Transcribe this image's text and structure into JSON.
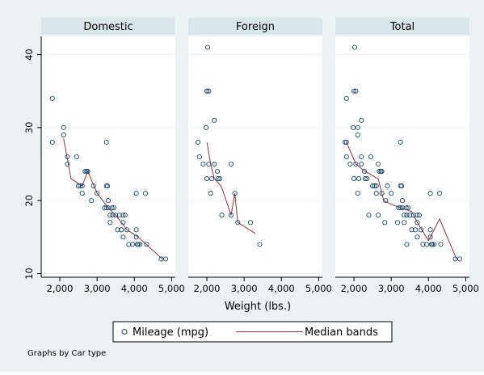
{
  "chart_data": {
    "type": "scatter",
    "xlabel": "Weight (lbs.)",
    "ylabel": "",
    "xlim": [
      1500,
      5100
    ],
    "ylim": [
      9.5,
      42.5
    ],
    "x_ticks": [
      2000,
      3000,
      4000,
      5000
    ],
    "x_tick_labels": [
      "2,000",
      "3,000",
      "4,000",
      "5,000"
    ],
    "y_ticks": [
      10,
      20,
      30,
      40
    ],
    "y_tick_labels": [
      "10",
      "20",
      "30",
      "40"
    ],
    "grid": true,
    "legend_position": "bottom",
    "legend": [
      {
        "label": "Mileage (mpg)",
        "kind": "marker"
      },
      {
        "label": "Median bands",
        "kind": "line"
      }
    ],
    "note": "Graphs by Car type",
    "colors": {
      "background": "#eaf2f3",
      "plot_region": "#ffffff",
      "grid": "#eaf2f3",
      "marker": "#1a476f",
      "median_line": "#90353b",
      "strip": "#d9e6eb"
    },
    "panels": [
      {
        "title": "Domestic",
        "points": [
          [
            1800,
            34
          ],
          [
            1800,
            28
          ],
          [
            2100,
            30
          ],
          [
            2100,
            29
          ],
          [
            2200,
            25
          ],
          [
            2200,
            26
          ],
          [
            2450,
            26
          ],
          [
            2500,
            22
          ],
          [
            2550,
            22
          ],
          [
            2600,
            22
          ],
          [
            2600,
            21
          ],
          [
            2680,
            24
          ],
          [
            2720,
            24
          ],
          [
            2750,
            24
          ],
          [
            2850,
            20
          ],
          [
            2900,
            22
          ],
          [
            3000,
            21
          ],
          [
            3200,
            19
          ],
          [
            3250,
            22
          ],
          [
            3250,
            19
          ],
          [
            3250,
            28
          ],
          [
            3280,
            22
          ],
          [
            3300,
            20
          ],
          [
            3300,
            19
          ],
          [
            3350,
            17
          ],
          [
            3350,
            18
          ],
          [
            3400,
            19
          ],
          [
            3420,
            18
          ],
          [
            3450,
            19
          ],
          [
            3500,
            18
          ],
          [
            3550,
            16
          ],
          [
            3600,
            18
          ],
          [
            3650,
            16
          ],
          [
            3650,
            16
          ],
          [
            3700,
            15
          ],
          [
            3700,
            17
          ],
          [
            3700,
            18
          ],
          [
            3750,
            18
          ],
          [
            3800,
            16
          ],
          [
            3850,
            14
          ],
          [
            3950,
            14
          ],
          [
            4050,
            16
          ],
          [
            4050,
            15
          ],
          [
            4050,
            21
          ],
          [
            4080,
            14
          ],
          [
            4100,
            14
          ],
          [
            4150,
            14
          ],
          [
            4300,
            21
          ],
          [
            4330,
            14
          ],
          [
            4720,
            12
          ],
          [
            4840,
            12
          ]
        ],
        "median_line": [
          [
            2100,
            28.5
          ],
          [
            2300,
            23
          ],
          [
            2600,
            22
          ],
          [
            2750,
            24
          ],
          [
            3000,
            21
          ],
          [
            3300,
            19
          ],
          [
            3500,
            18
          ],
          [
            3800,
            16
          ],
          [
            4100,
            15
          ],
          [
            4750,
            12
          ]
        ]
      },
      {
        "title": "Foreign",
        "points": [
          [
            1760,
            28
          ],
          [
            1800,
            26
          ],
          [
            1900,
            25
          ],
          [
            2000,
            35
          ],
          [
            2020,
            41
          ],
          [
            2050,
            35
          ],
          [
            1980,
            30
          ],
          [
            2000,
            23
          ],
          [
            2100,
            21
          ],
          [
            2050,
            25
          ],
          [
            2130,
            23
          ],
          [
            2200,
            31
          ],
          [
            2200,
            25
          ],
          [
            2280,
            24
          ],
          [
            2300,
            23
          ],
          [
            2350,
            23
          ],
          [
            2400,
            18
          ],
          [
            2650,
            25
          ],
          [
            2650,
            18
          ],
          [
            2750,
            21
          ],
          [
            2830,
            17
          ],
          [
            3170,
            17
          ],
          [
            3420,
            14
          ],
          [
            2000,
            35
          ]
        ],
        "median_line": [
          [
            2000,
            28
          ],
          [
            2100,
            25
          ],
          [
            2200,
            23
          ],
          [
            2380,
            22
          ],
          [
            2520,
            20
          ],
          [
            2650,
            18
          ],
          [
            2750,
            21
          ],
          [
            2830,
            17
          ],
          [
            3300,
            15.5
          ]
        ]
      },
      {
        "title": "Total",
        "points": [
          [
            1760,
            28
          ],
          [
            1800,
            26
          ],
          [
            1800,
            34
          ],
          [
            1800,
            28
          ],
          [
            1900,
            25
          ],
          [
            1980,
            30
          ],
          [
            2000,
            35
          ],
          [
            2000,
            23
          ],
          [
            2020,
            41
          ],
          [
            2050,
            35
          ],
          [
            2050,
            25
          ],
          [
            2100,
            30
          ],
          [
            2100,
            29
          ],
          [
            2100,
            21
          ],
          [
            2130,
            23
          ],
          [
            2200,
            31
          ],
          [
            2200,
            25
          ],
          [
            2200,
            26
          ],
          [
            2280,
            24
          ],
          [
            2300,
            23
          ],
          [
            2350,
            23
          ],
          [
            2400,
            18
          ],
          [
            2450,
            26
          ],
          [
            2500,
            22
          ],
          [
            2550,
            22
          ],
          [
            2600,
            22
          ],
          [
            2600,
            21
          ],
          [
            2650,
            25
          ],
          [
            2650,
            18
          ],
          [
            2680,
            24
          ],
          [
            2720,
            24
          ],
          [
            2750,
            24
          ],
          [
            2750,
            21
          ],
          [
            2830,
            17
          ],
          [
            2850,
            20
          ],
          [
            2900,
            22
          ],
          [
            3000,
            21
          ],
          [
            3170,
            17
          ],
          [
            3200,
            19
          ],
          [
            3250,
            22
          ],
          [
            3250,
            19
          ],
          [
            3250,
            28
          ],
          [
            3280,
            22
          ],
          [
            3300,
            20
          ],
          [
            3300,
            19
          ],
          [
            3350,
            17
          ],
          [
            3350,
            18
          ],
          [
            3400,
            19
          ],
          [
            3420,
            18
          ],
          [
            3420,
            14
          ],
          [
            3450,
            19
          ],
          [
            3500,
            18
          ],
          [
            3550,
            16
          ],
          [
            3600,
            18
          ],
          [
            3650,
            16
          ],
          [
            3700,
            15
          ],
          [
            3700,
            17
          ],
          [
            3700,
            18
          ],
          [
            3750,
            18
          ],
          [
            3800,
            16
          ],
          [
            3850,
            14
          ],
          [
            3950,
            14
          ],
          [
            4050,
            16
          ],
          [
            4050,
            15
          ],
          [
            4050,
            21
          ],
          [
            4080,
            14
          ],
          [
            4100,
            14
          ],
          [
            4150,
            14
          ],
          [
            4300,
            21
          ],
          [
            4330,
            14
          ],
          [
            4720,
            12
          ],
          [
            4840,
            12
          ]
        ],
        "median_line": [
          [
            1800,
            28
          ],
          [
            2050,
            25
          ],
          [
            2300,
            24
          ],
          [
            2650,
            23
          ],
          [
            2800,
            20
          ],
          [
            3000,
            19.5
          ],
          [
            3250,
            19
          ],
          [
            3550,
            18.5
          ],
          [
            3700,
            17
          ],
          [
            4000,
            14.5
          ],
          [
            4300,
            17.5
          ],
          [
            4750,
            12
          ]
        ]
      }
    ]
  }
}
